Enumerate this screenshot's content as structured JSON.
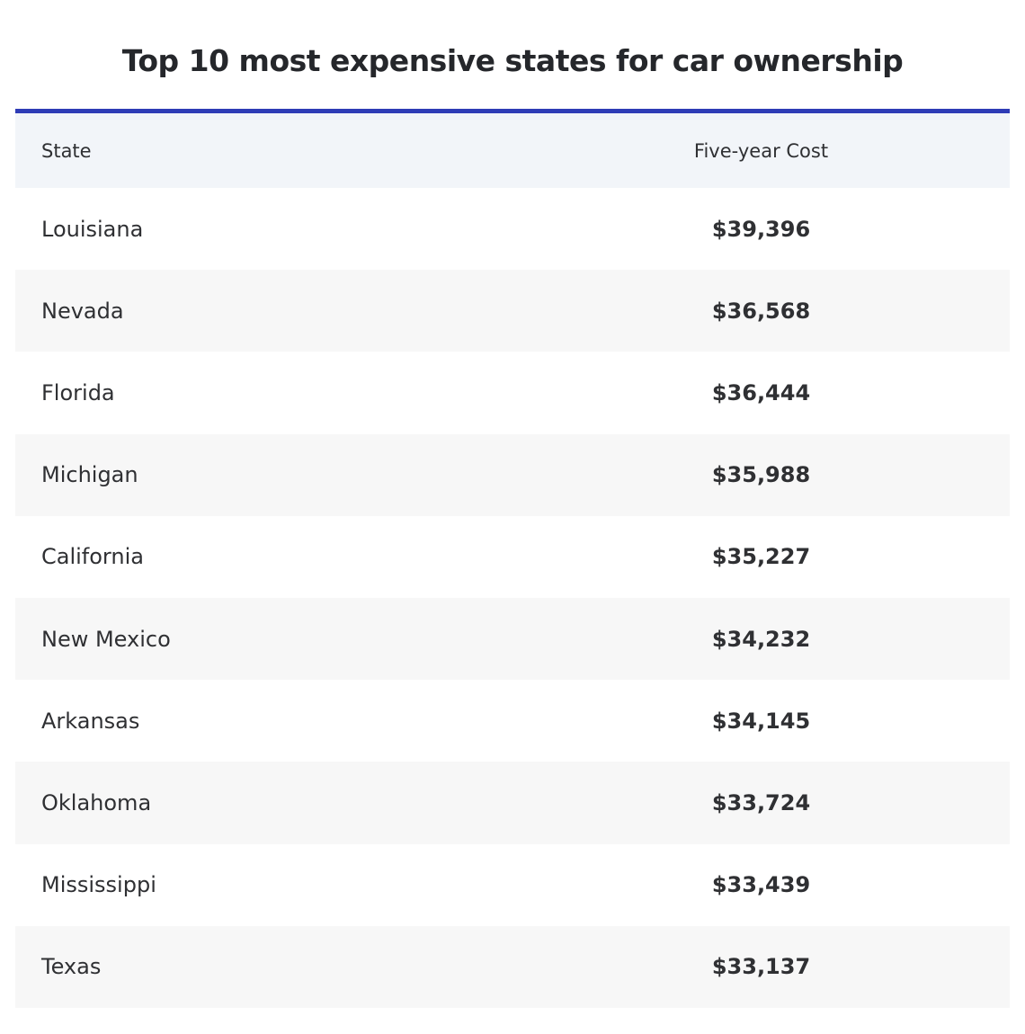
{
  "title": "Top 10 most expensive states for car ownership",
  "table": {
    "headers": [
      "State",
      "Five-year Cost"
    ],
    "rows": [
      {
        "state": "Louisiana",
        "cost": "$39,396"
      },
      {
        "state": "Nevada",
        "cost": "$36,568"
      },
      {
        "state": "Florida",
        "cost": "$36,444"
      },
      {
        "state": "Michigan",
        "cost": "$35,988"
      },
      {
        "state": "California",
        "cost": "$35,227"
      },
      {
        "state": "New Mexico",
        "cost": "$34,232"
      },
      {
        "state": "Arkansas",
        "cost": "$34,145"
      },
      {
        "state": "Oklahoma",
        "cost": "$33,724"
      },
      {
        "state": "Mississippi",
        "cost": "$33,439"
      },
      {
        "state": "Texas",
        "cost": "$33,137"
      }
    ]
  },
  "colors": {
    "accent_border": "#2e3cb6",
    "header_bg": "#f2f5f9",
    "alt_row_bg": "#f7f7f7"
  }
}
